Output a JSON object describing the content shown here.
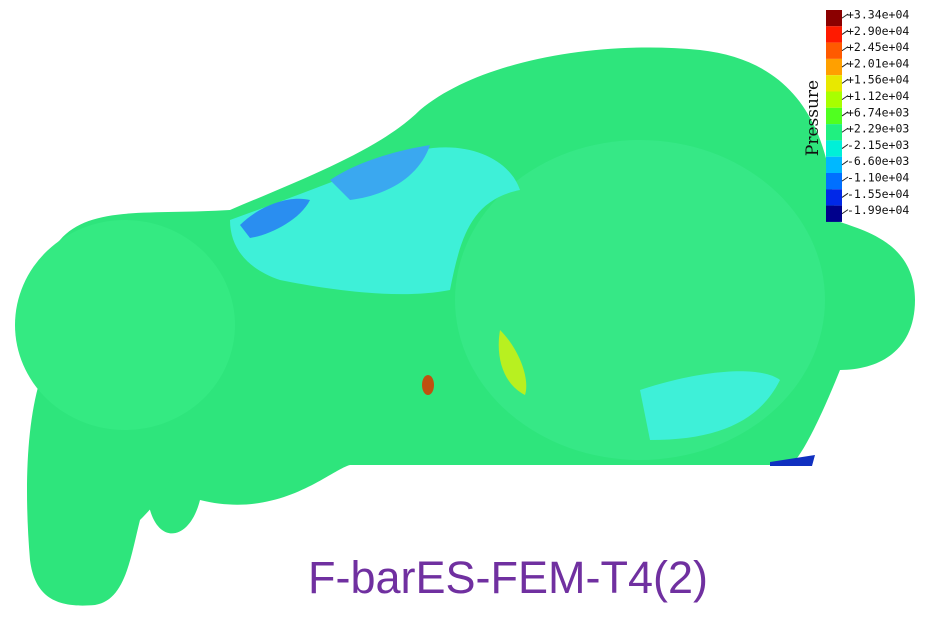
{
  "legend": {
    "title": "Pressure",
    "entries": [
      {
        "label": "+3.34e+04",
        "color": "#8b0000"
      },
      {
        "label": "+2.90e+04",
        "color": "#ff1a00"
      },
      {
        "label": "+2.45e+04",
        "color": "#ff5a00"
      },
      {
        "label": "+2.01e+04",
        "color": "#ffa000"
      },
      {
        "label": "+1.56e+04",
        "color": "#e8e800"
      },
      {
        "label": "+1.12e+04",
        "color": "#a8ff00"
      },
      {
        "label": "+6.74e+03",
        "color": "#50ff20"
      },
      {
        "label": "+2.29e+03",
        "color": "#20f080"
      },
      {
        "label": "-2.15e+03",
        "color": "#00f0d8"
      },
      {
        "label": "-6.60e+03",
        "color": "#00b8ff"
      },
      {
        "label": "-1.10e+04",
        "color": "#0070ff"
      },
      {
        "label": "-1.55e+04",
        "color": "#0028e8"
      },
      {
        "label": "-1.99e+04",
        "color": "#00008c"
      }
    ]
  },
  "caption": "F-barES-FEM-T4(2)"
}
